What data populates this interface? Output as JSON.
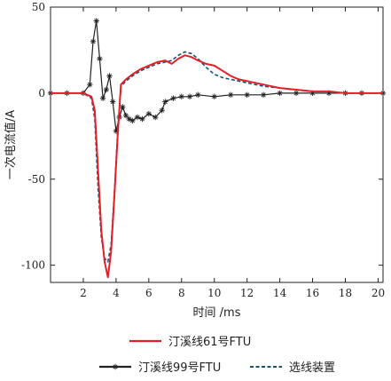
{
  "chart_data": {
    "type": "line",
    "xlabel": "时间 /ms",
    "ylabel": "一次电流值/A",
    "xlim": [
      0,
      20.3
    ],
    "ylim": [
      -110,
      50
    ],
    "xticks": [
      2,
      4,
      6,
      8,
      10,
      12,
      14,
      16,
      18,
      20
    ],
    "yticks": [
      50,
      0,
      -50,
      -100
    ],
    "grid": false,
    "legend_position": "bottom",
    "series": [
      {
        "name": "汀溪线61号FTU",
        "color": "#e32027",
        "style": "solid",
        "marker": "none",
        "x": [
          0,
          2.0,
          2.5,
          2.7,
          2.9,
          3.1,
          3.3,
          3.5,
          3.7,
          3.9,
          4.1,
          4.3,
          4.6,
          5.0,
          5.5,
          6.0,
          6.5,
          7.0,
          7.4,
          7.8,
          8.2,
          8.6,
          9.0,
          9.5,
          10.0,
          10.5,
          11.0,
          11.5,
          12.0,
          13.0,
          14.0,
          15.0,
          16.0,
          17.0,
          18.0,
          19.0,
          20.3
        ],
        "y": [
          0,
          0,
          -2,
          -10,
          -45,
          -80,
          -98,
          -107,
          -92,
          -60,
          -25,
          5,
          8,
          11,
          14,
          16,
          18,
          19,
          17,
          20,
          22,
          21,
          19,
          17,
          16,
          13,
          10,
          8,
          7,
          5,
          3,
          2,
          1,
          1,
          0,
          0,
          0
        ]
      },
      {
        "name": "汀溪线99号FTU",
        "color": "#222222",
        "style": "solid",
        "marker": "asterisk",
        "x": [
          0,
          1.0,
          2.0,
          2.4,
          2.6,
          2.8,
          3.0,
          3.2,
          3.4,
          3.6,
          3.8,
          4.0,
          4.2,
          4.4,
          4.6,
          4.8,
          5.0,
          5.3,
          5.6,
          6.0,
          6.4,
          6.8,
          7.0,
          7.5,
          8.0,
          8.5,
          9.0,
          10.0,
          11.0,
          12.0,
          13.0,
          14.0,
          15.0,
          16.0,
          17.0,
          18.0,
          19.0,
          20.3
        ],
        "y": [
          0,
          0,
          0,
          5,
          30,
          42,
          20,
          -3,
          2,
          10,
          -5,
          -22,
          -14,
          -8,
          -13,
          -15,
          -16,
          -14,
          -15,
          -12,
          -14,
          -10,
          -5,
          -3,
          -2,
          -2,
          -1,
          -2,
          -1,
          -1,
          -1,
          0,
          0,
          0,
          0,
          0,
          0,
          0
        ]
      },
      {
        "name": "选线装置",
        "color": "#1a5276",
        "style": "dashed",
        "marker": "none",
        "x": [
          0,
          2.0,
          2.5,
          2.7,
          2.9,
          3.1,
          3.3,
          3.5,
          3.7,
          3.9,
          4.1,
          4.3,
          4.6,
          5.0,
          5.5,
          6.0,
          6.5,
          7.0,
          7.4,
          7.8,
          8.2,
          8.6,
          9.0,
          9.5,
          10.0,
          10.5,
          11.0,
          11.5,
          12.0,
          13.0,
          14.0,
          15.0,
          16.0,
          17.0,
          18.0,
          19.0,
          20.3
        ],
        "y": [
          0,
          0,
          -3,
          -15,
          -55,
          -84,
          -96,
          -98,
          -88,
          -58,
          -22,
          4,
          7,
          10,
          13,
          15,
          17,
          18,
          19,
          22,
          24,
          23,
          20,
          15,
          11,
          9,
          8,
          7,
          6,
          4,
          3,
          2,
          1,
          1,
          0,
          0,
          0
        ]
      }
    ]
  }
}
